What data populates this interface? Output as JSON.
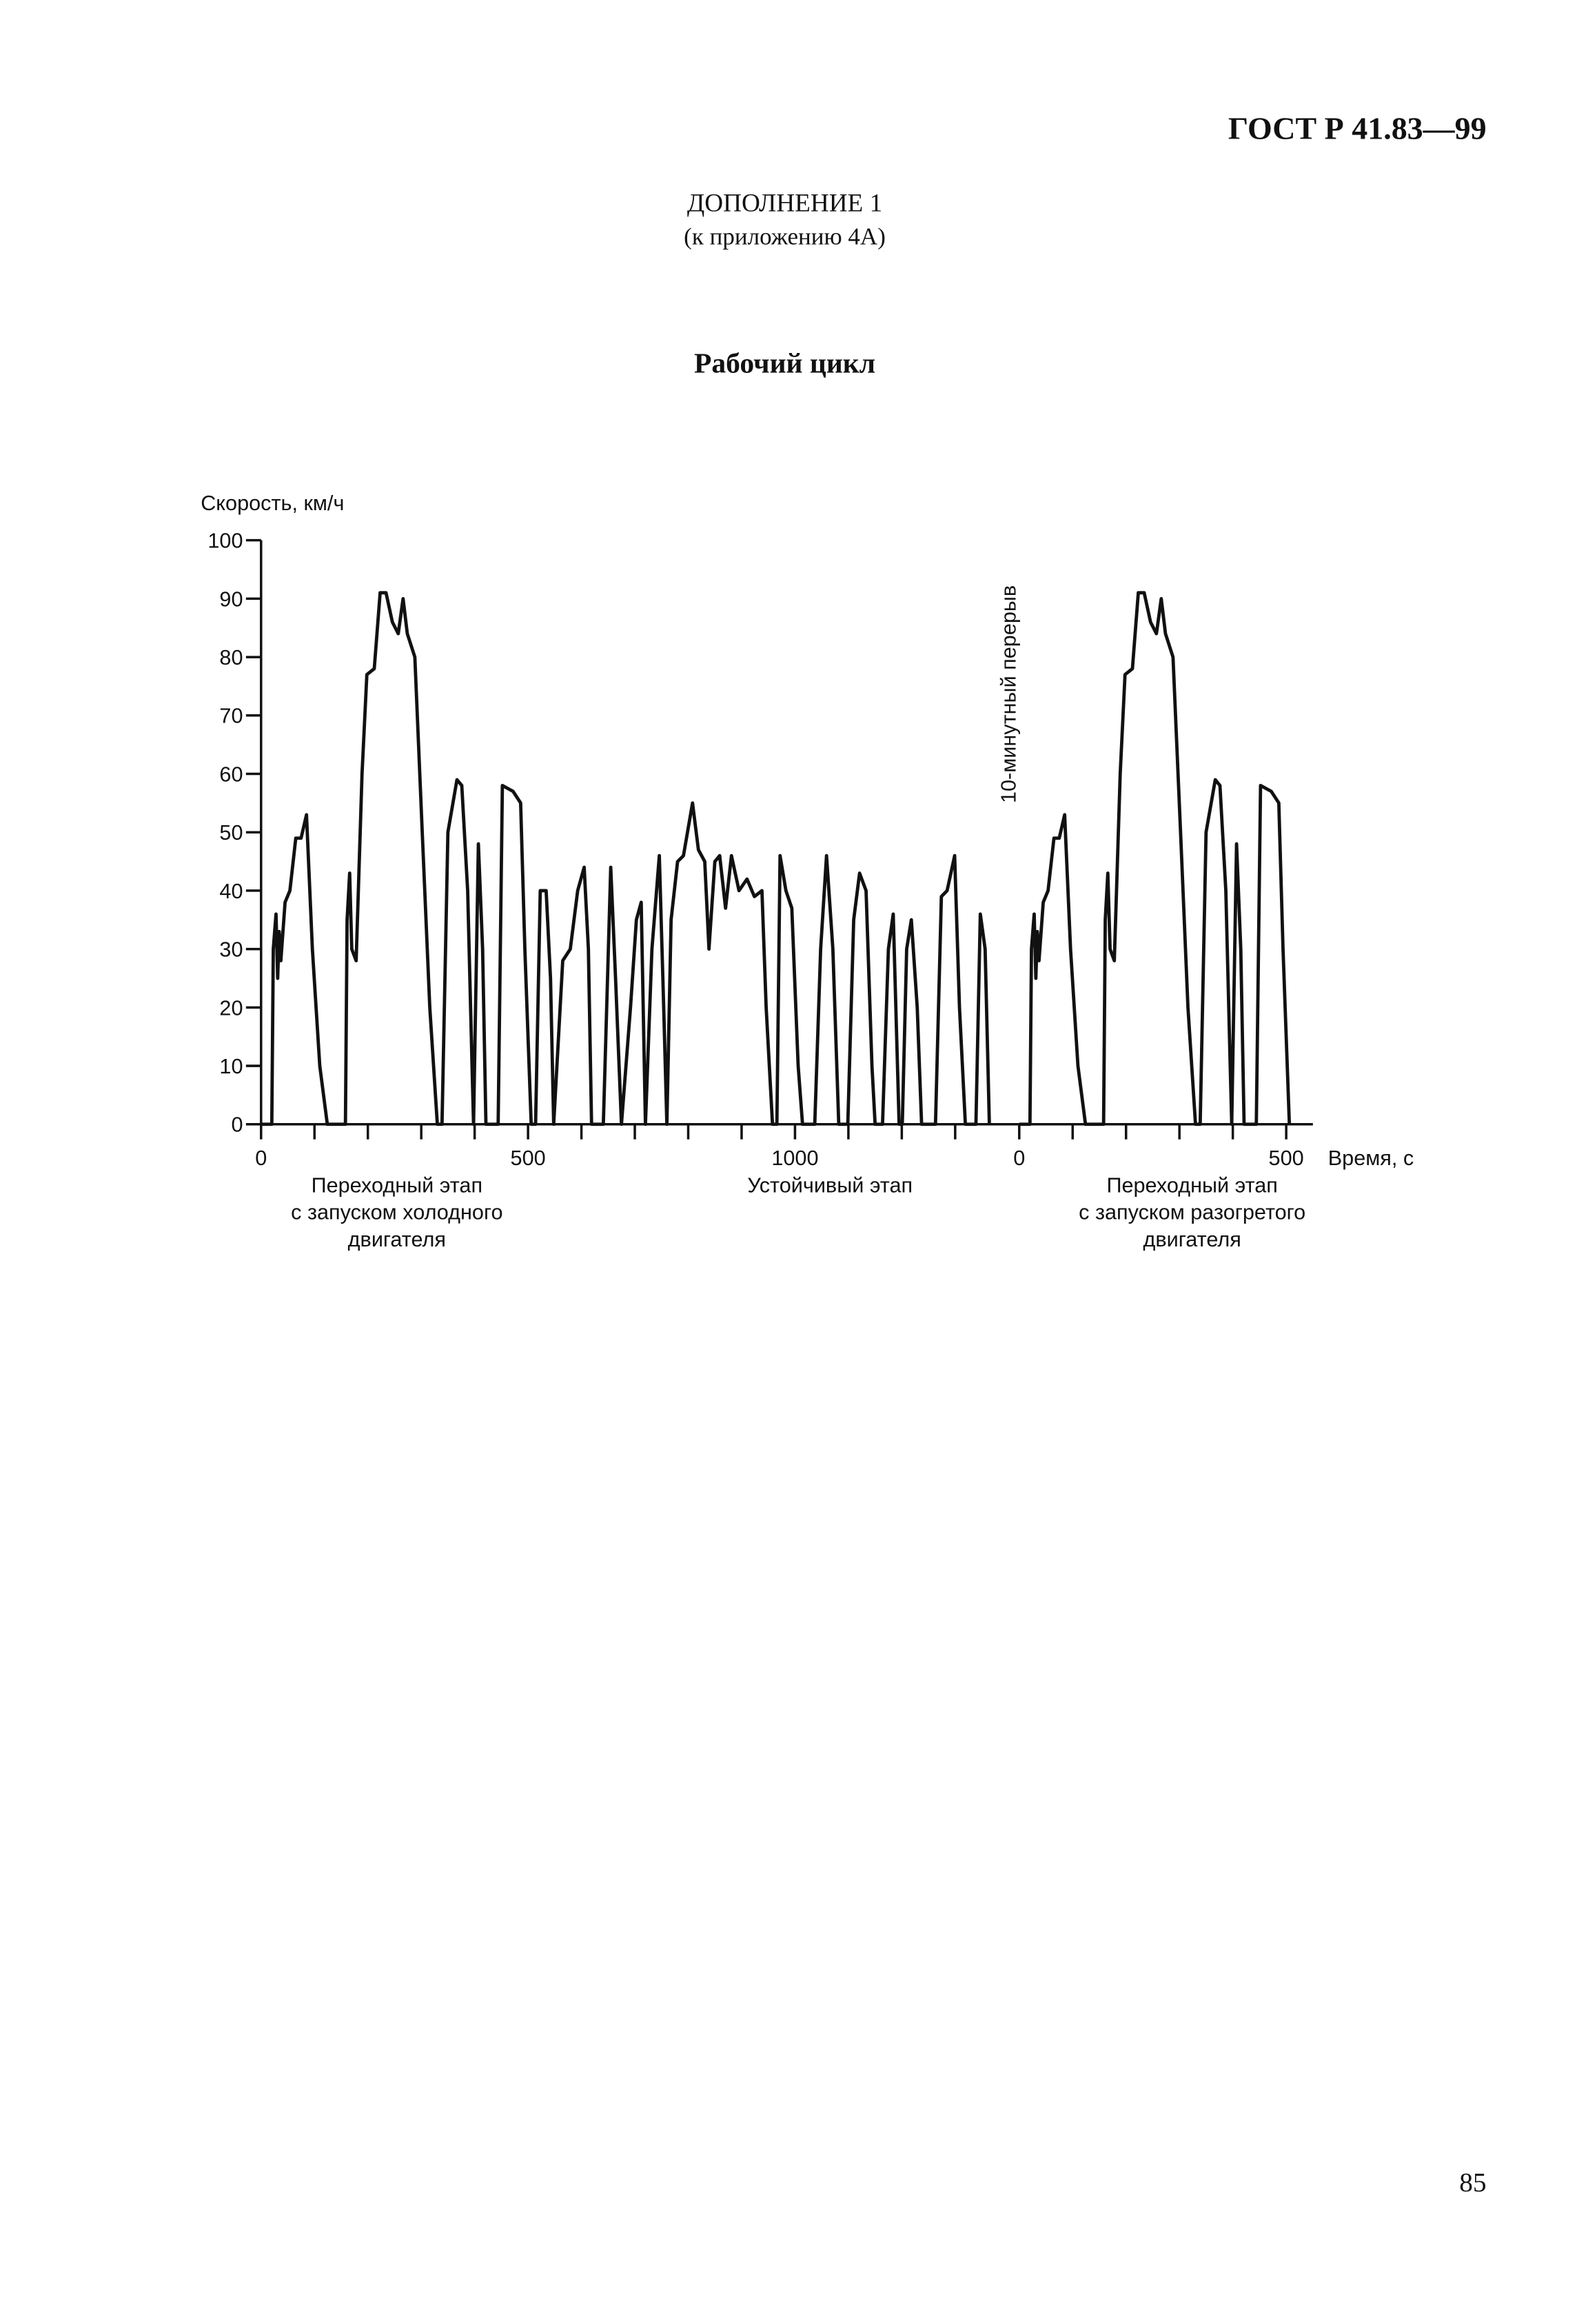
{
  "header": {
    "code": "ГОСТ Р 41.83—99",
    "appendix": "ДОПОЛНЕНИЕ 1",
    "reference": "(к приложению 4А)"
  },
  "page_number": "85",
  "chart_data": {
    "type": "line",
    "title": "Рабочий цикл",
    "y_label": "Скорость, км/ч",
    "x_label": "Время, с",
    "xlim": [
      0,
      1970
    ],
    "ylim": [
      0,
      100
    ],
    "xticks": [
      0,
      500,
      1000,
      {
        "value": 1420,
        "label": "0"
      },
      {
        "value": 1920,
        "label": "500"
      }
    ],
    "xminorticks": [
      100,
      200,
      300,
      400,
      600,
      700,
      800,
      900,
      1100,
      1200,
      1300,
      1520,
      1620,
      1720,
      1820
    ],
    "yticks": [
      0,
      10,
      20,
      30,
      40,
      50,
      60,
      70,
      80,
      90,
      100
    ],
    "annotations": [
      {
        "lines": [
          "Переходный этап",
          "с запуском холодного",
          "двигателя"
        ]
      },
      {
        "lines": [
          "Устойчивый этап"
        ]
      },
      {
        "lines": [
          "Переходный этап",
          "с запуском разогретого",
          "двигателя"
        ]
      }
    ],
    "break_note": "10-минутный перерыв",
    "series": [
      {
        "color": "#111111",
        "x": [
          0,
          20,
          23,
          28,
          31,
          34,
          37,
          45,
          54,
          65,
          75,
          85,
          96,
          110,
          124,
          158,
          161,
          166,
          170,
          178,
          189,
          198,
          212,
          223,
          234,
          246,
          257,
          266,
          274,
          288,
          302,
          316,
          330,
          339,
          350,
          367,
          376,
          387,
          395,
          398,
          407,
          415,
          421,
          444,
          452,
          472,
          486,
          494,
          506,
          514,
          523,
          534,
          542,
          548,
          565,
          579,
          593,
          605,
          613,
          619,
          641,
          655,
          664,
          675,
          692,
          703,
          712,
          720,
          732,
          746,
          754,
          760,
          768,
          780,
          791,
          808,
          819,
          831,
          839,
          850,
          859,
          870,
          881,
          895,
          910,
          924,
          938,
          946,
          958,
          966,
          972,
          983,
          994,
          1006,
          1014,
          1037,
          1048,
          1059,
          1071,
          1082,
          1099,
          1110,
          1121,
          1133,
          1144,
          1150,
          1164,
          1175,
          1184,
          1195,
          1201,
          1209,
          1218,
          1229,
          1237,
          1263,
          1274,
          1285,
          1299,
          1308,
          1319,
          1339,
          1347,
          1356,
          1364,
          1392,
          1420,
          1440,
          1443,
          1448,
          1451,
          1454,
          1457,
          1465,
          1474,
          1485,
          1495,
          1505,
          1516,
          1530,
          1544,
          1578,
          1581,
          1586,
          1590,
          1598,
          1609,
          1618,
          1632,
          1643,
          1654,
          1666,
          1677,
          1686,
          1694,
          1708,
          1722,
          1736,
          1750,
          1759,
          1770,
          1787,
          1796,
          1807,
          1815,
          1818,
          1827,
          1835,
          1841,
          1864,
          1872,
          1892,
          1906,
          1914,
          1926
        ],
        "values": [
          0,
          0,
          30,
          36,
          25,
          33,
          28,
          38,
          40,
          49,
          49,
          53,
          30,
          10,
          0,
          0,
          35,
          43,
          30,
          28,
          60,
          77,
          78,
          91,
          91,
          86,
          84,
          90,
          84,
          80,
          50,
          20,
          0,
          0,
          50,
          59,
          58,
          40,
          10,
          0,
          48,
          30,
          0,
          0,
          58,
          57,
          55,
          30,
          0,
          0,
          40,
          40,
          25,
          0,
          28,
          30,
          40,
          44,
          30,
          0,
          0,
          44,
          25,
          0,
          20,
          35,
          38,
          0,
          30,
          46,
          20,
          0,
          35,
          45,
          46,
          55,
          47,
          45,
          30,
          45,
          46,
          37,
          46,
          40,
          42,
          39,
          40,
          20,
          0,
          0,
          46,
          40,
          37,
          10,
          0,
          0,
          30,
          46,
          30,
          0,
          0,
          35,
          43,
          40,
          10,
          0,
          0,
          30,
          36,
          0,
          0,
          30,
          35,
          20,
          0,
          0,
          39,
          40,
          46,
          20,
          0,
          0,
          36,
          30,
          0,
          null,
          0,
          0,
          30,
          36,
          25,
          33,
          28,
          38,
          40,
          49,
          49,
          53,
          30,
          10,
          0,
          0,
          35,
          43,
          30,
          28,
          60,
          77,
          78,
          91,
          91,
          86,
          84,
          90,
          84,
          80,
          50,
          20,
          0,
          0,
          50,
          59,
          58,
          40,
          10,
          0,
          48,
          30,
          0,
          0,
          58,
          57,
          55,
          30,
          0
        ]
      }
    ]
  }
}
